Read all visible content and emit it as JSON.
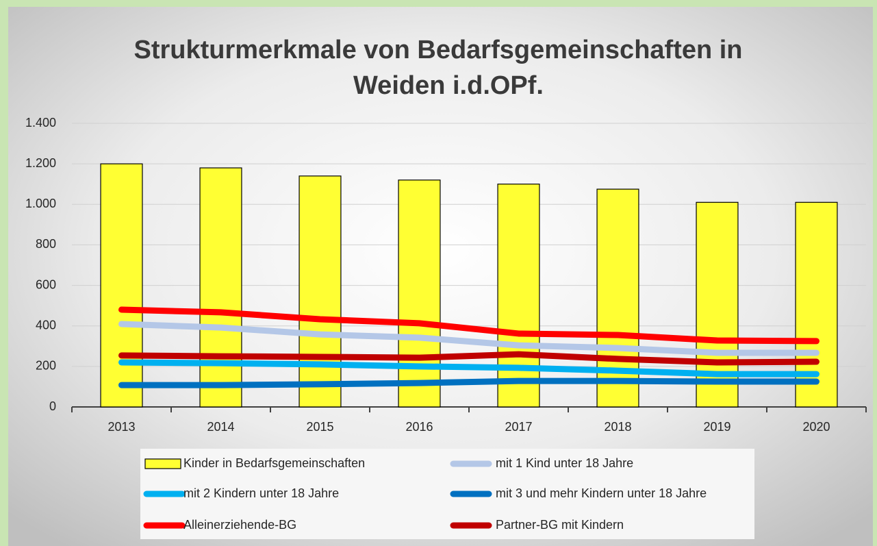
{
  "chart_data": {
    "type": "bar",
    "title": [
      "Strukturmerkmale von Bedarfsgemeinschaften in",
      "Weiden i.d.OPf."
    ],
    "categories": [
      "2013",
      "2014",
      "2015",
      "2016",
      "2017",
      "2018",
      "2019",
      "2020"
    ],
    "series": [
      {
        "name": "Kinder in Bedarfsgemeinschaften",
        "type": "bar",
        "color": "#ffff33",
        "values": [
          1200,
          1180,
          1140,
          1120,
          1100,
          1075,
          1010,
          1010
        ]
      },
      {
        "name": "mit 1 Kind unter 18 Jahre",
        "type": "line",
        "color": "#b4c7e7",
        "values": [
          409,
          392,
          358,
          342,
          304,
          291,
          267,
          267
        ]
      },
      {
        "name": "mit 2 Kindern unter 18 Jahre",
        "type": "line",
        "color": "#00b0f0",
        "values": [
          220,
          216,
          210,
          200,
          193,
          179,
          162,
          162
        ]
      },
      {
        "name": "mit 3 und mehr Kindern unter 18 Jahre",
        "type": "line",
        "color": "#0070c0",
        "values": [
          108,
          108,
          112,
          118,
          128,
          128,
          125,
          125
        ]
      },
      {
        "name": "Alleinerziehende-BG",
        "type": "line",
        "color": "#ff0000",
        "values": [
          480,
          467,
          433,
          413,
          362,
          355,
          328,
          325
        ]
      },
      {
        "name": "Partner-BG mit Kindern",
        "type": "line",
        "color": "#c00000",
        "values": [
          254,
          250,
          247,
          243,
          260,
          237,
          220,
          223
        ]
      }
    ],
    "ylim": [
      0,
      1400
    ],
    "yticks": [
      0,
      200,
      400,
      600,
      800,
      {
        "value": 1000,
        "label": "1.000"
      },
      {
        "value": 1200,
        "label": "1.200"
      },
      {
        "value": 1400,
        "label": "1.400"
      }
    ],
    "grid": true
  }
}
